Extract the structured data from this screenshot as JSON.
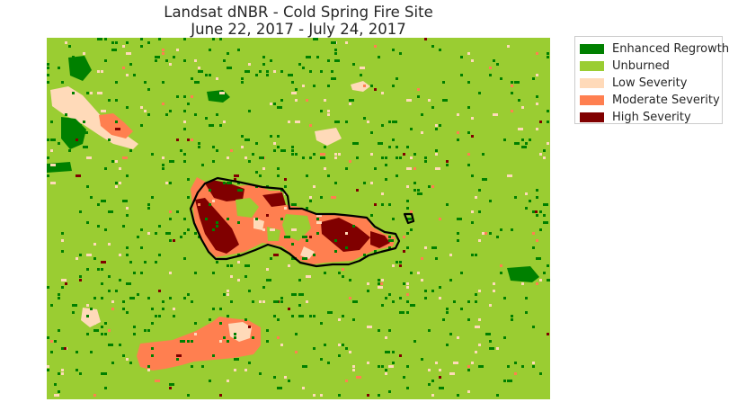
{
  "chart_data": {
    "type": "heatmap",
    "title": "Landsat dNBR - Cold Spring Fire Site",
    "subtitle": "June 22, 2017 - July 24, 2017",
    "xlabel": "",
    "ylabel": "",
    "grid": false,
    "legend_placement": "outside-right",
    "categories": [
      {
        "name": "Enhanced Regrowth",
        "color": "#008000"
      },
      {
        "name": "Unburned",
        "color": "#9acd32"
      },
      {
        "name": "Low Severity",
        "color": "#ffdab9"
      },
      {
        "name": "Moderate Severity",
        "color": "#ff7f50"
      },
      {
        "name": "High Severity",
        "color": "#800000"
      }
    ],
    "background_class": "Unburned",
    "fire_boundary": "black outline"
  }
}
